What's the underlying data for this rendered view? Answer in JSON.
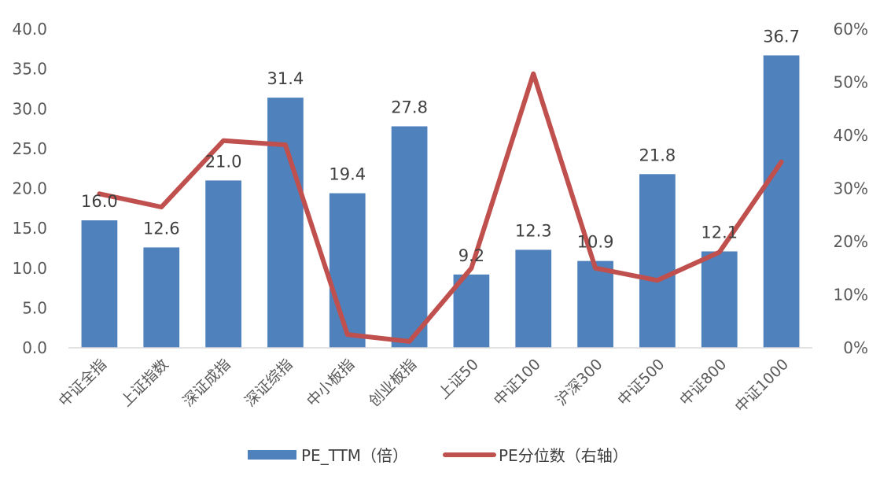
{
  "chart_data": {
    "type": "bar",
    "categories": [
      "中证全指",
      "上证指数",
      "深证成指",
      "深证综指",
      "中小板指",
      "创业板指",
      "上证50",
      "中证100",
      "沪深300",
      "中证500",
      "中证800",
      "中证1000"
    ],
    "series": [
      {
        "name": "PE_TTM（倍）",
        "type": "bar",
        "axis": "left",
        "color": "#4F81BD",
        "values": [
          16.0,
          12.6,
          21.0,
          31.4,
          19.4,
          27.8,
          9.2,
          12.3,
          10.9,
          21.8,
          12.1,
          36.7
        ],
        "labels": [
          "16.0",
          "12.6",
          "21.0",
          "31.4",
          "19.4",
          "27.8",
          "9.2",
          "12.3",
          "10.9",
          "21.8",
          "12.1",
          "36.7"
        ]
      },
      {
        "name": "PE分位数（右轴）",
        "type": "line",
        "axis": "right",
        "color": "#C0504D",
        "values": [
          0.29,
          0.265,
          0.39,
          0.382,
          0.025,
          0.012,
          0.15,
          0.516,
          0.15,
          0.127,
          0.18,
          0.35
        ]
      }
    ],
    "y_left": {
      "min": 0,
      "max": 40,
      "step": 5,
      "ticks": [
        "0.0",
        "5.0",
        "10.0",
        "15.0",
        "20.0",
        "25.0",
        "30.0",
        "35.0",
        "40.0"
      ]
    },
    "y_right": {
      "min": 0,
      "max": 0.6,
      "step": 0.1,
      "ticks": [
        "0%",
        "10%",
        "20%",
        "30%",
        "40%",
        "50%",
        "60%"
      ]
    },
    "grid": false,
    "legend_position": "bottom"
  }
}
